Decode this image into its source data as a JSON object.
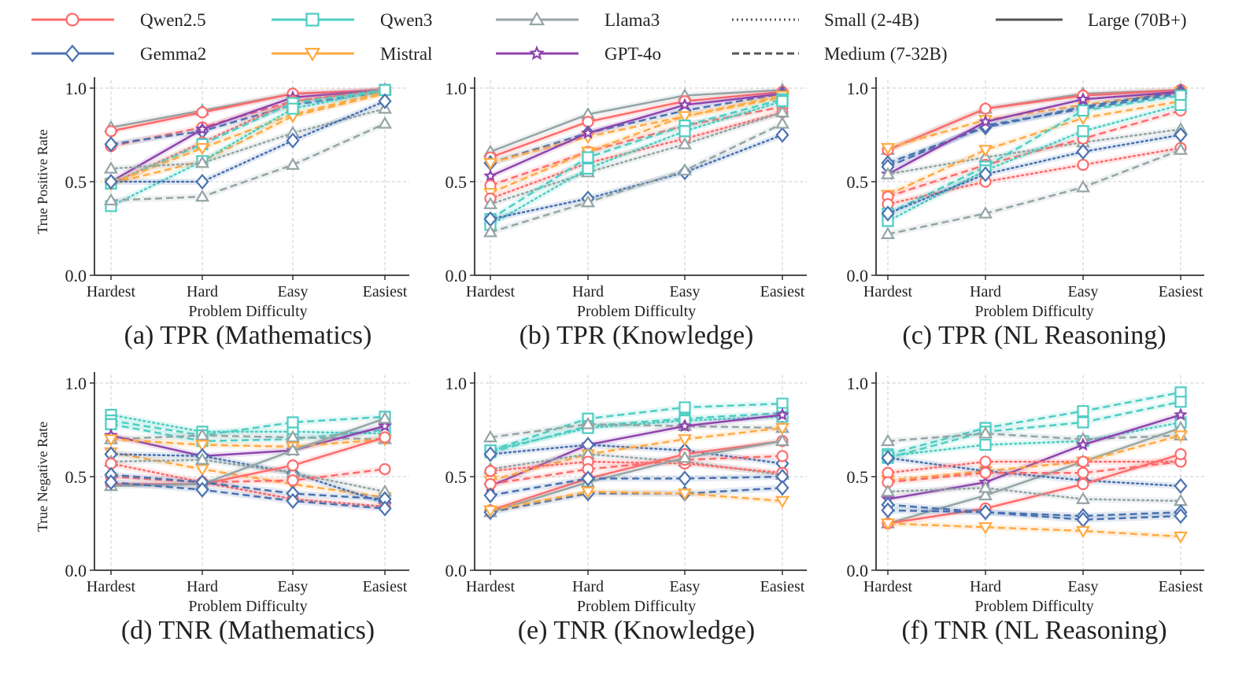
{
  "legend": {
    "families": [
      {
        "name": "Qwen2.5",
        "color": "#ff6b6b",
        "marker": "circle"
      },
      {
        "name": "Gemma2",
        "color": "#4a72b0",
        "marker": "diamond"
      },
      {
        "name": "Qwen3",
        "color": "#4ecdc4",
        "marker": "square"
      },
      {
        "name": "Mistral",
        "color": "#ffaa44",
        "marker": "triangle-down"
      },
      {
        "name": "Llama3",
        "color": "#95a5a6",
        "marker": "triangle-up"
      },
      {
        "name": "GPT-4o",
        "color": "#8e44ad",
        "marker": "star"
      }
    ],
    "sizes": [
      {
        "key": "small",
        "name": "Small (2-4B)",
        "style": "dotted"
      },
      {
        "key": "medium",
        "name": "Medium (7-32B)",
        "style": "dashed"
      },
      {
        "key": "large",
        "name": "Large (70B+)",
        "style": "solid"
      }
    ]
  },
  "chart_data": [
    {
      "type": "line",
      "title": "(a) TPR (Mathematics)",
      "xlabel": "Problem Difficulty",
      "ylabel": "True Positive Rate",
      "categories": [
        "Hardest",
        "Hard",
        "Easy",
        "Easiest"
      ],
      "ylim": [
        0,
        1
      ],
      "yticks": [
        "0.0",
        "0.5",
        "1.0"
      ],
      "grid": true,
      "series": [
        {
          "family": "Llama3",
          "size": "large",
          "values": [
            0.79,
            0.88,
            0.97,
            0.99
          ]
        },
        {
          "family": "Qwen2.5",
          "size": "large",
          "values": [
            0.77,
            0.87,
            0.97,
            0.99
          ]
        },
        {
          "family": "Qwen2.5",
          "size": "medium",
          "values": [
            0.69,
            0.79,
            0.93,
            0.99
          ]
        },
        {
          "family": "Gemma2",
          "size": "medium",
          "values": [
            0.7,
            0.77,
            0.91,
            0.98
          ]
        },
        {
          "family": "GPT-4o",
          "size": "large",
          "values": [
            0.5,
            0.78,
            0.95,
            0.99
          ]
        },
        {
          "family": "Qwen2.5",
          "size": "small",
          "values": [
            0.49,
            0.71,
            0.93,
            0.99
          ]
        },
        {
          "family": "Qwen3",
          "size": "medium",
          "values": [
            0.49,
            0.7,
            0.92,
            0.99
          ]
        },
        {
          "family": "Mistral",
          "size": "medium",
          "values": [
            0.49,
            0.68,
            0.86,
            0.98
          ]
        },
        {
          "family": "Mistral",
          "size": "medium",
          "values": [
            0.49,
            0.61,
            0.85,
            0.97
          ]
        },
        {
          "family": "Qwen3",
          "size": "small",
          "values": [
            0.37,
            0.61,
            0.89,
            0.99
          ]
        },
        {
          "family": "Llama3",
          "size": "small",
          "values": [
            0.57,
            0.6,
            0.76,
            0.89
          ]
        },
        {
          "family": "Gemma2",
          "size": "small",
          "values": [
            0.5,
            0.5,
            0.72,
            0.93
          ]
        },
        {
          "family": "Llama3",
          "size": "medium",
          "values": [
            0.4,
            0.42,
            0.59,
            0.81
          ]
        }
      ]
    },
    {
      "type": "line",
      "title": "(b) TPR (Knowledge)",
      "xlabel": "Problem Difficulty",
      "ylabel": "",
      "categories": [
        "Hardest",
        "Hard",
        "Easy",
        "Easiest"
      ],
      "ylim": [
        0,
        1
      ],
      "yticks": [
        "0.0",
        "0.5",
        "1.0"
      ],
      "grid": true,
      "series": [
        {
          "family": "Llama3",
          "size": "large",
          "values": [
            0.66,
            0.86,
            0.96,
            0.99
          ]
        },
        {
          "family": "Qwen2.5",
          "size": "large",
          "values": [
            0.63,
            0.82,
            0.93,
            0.98
          ]
        },
        {
          "family": "Gemma2",
          "size": "medium",
          "values": [
            0.6,
            0.76,
            0.88,
            0.97
          ]
        },
        {
          "family": "Mistral",
          "size": "medium",
          "values": [
            0.6,
            0.74,
            0.85,
            0.95
          ]
        },
        {
          "family": "GPT-4o",
          "size": "large",
          "values": [
            0.53,
            0.76,
            0.91,
            0.97
          ]
        },
        {
          "family": "Qwen2.5",
          "size": "medium",
          "values": [
            0.48,
            0.66,
            0.8,
            0.9
          ]
        },
        {
          "family": "Mistral",
          "size": "medium",
          "values": [
            0.44,
            0.66,
            0.85,
            0.96
          ]
        },
        {
          "family": "Qwen2.5",
          "size": "small",
          "values": [
            0.41,
            0.6,
            0.73,
            0.87
          ]
        },
        {
          "family": "Llama3",
          "size": "small",
          "values": [
            0.38,
            0.55,
            0.7,
            0.87
          ]
        },
        {
          "family": "Qwen3",
          "size": "medium",
          "values": [
            0.3,
            0.63,
            0.8,
            0.94
          ]
        },
        {
          "family": "Qwen3",
          "size": "small",
          "values": [
            0.27,
            0.57,
            0.77,
            0.93
          ]
        },
        {
          "family": "Gemma2",
          "size": "small",
          "values": [
            0.3,
            0.41,
            0.55,
            0.75
          ]
        },
        {
          "family": "Llama3",
          "size": "medium",
          "values": [
            0.23,
            0.39,
            0.56,
            0.81
          ]
        }
      ]
    },
    {
      "type": "line",
      "title": "(c) TPR (NL Reasoning)",
      "xlabel": "Problem Difficulty",
      "ylabel": "",
      "categories": [
        "Hardest",
        "Hard",
        "Easy",
        "Easiest"
      ],
      "ylim": [
        0,
        1
      ],
      "yticks": [
        "0.0",
        "0.5",
        "1.0"
      ],
      "grid": true,
      "series": [
        {
          "family": "Llama3",
          "size": "large",
          "values": [
            0.67,
            0.89,
            0.97,
            0.99
          ]
        },
        {
          "family": "Qwen2.5",
          "size": "large",
          "values": [
            0.67,
            0.89,
            0.96,
            0.99
          ]
        },
        {
          "family": "Mistral",
          "size": "medium",
          "values": [
            0.68,
            0.83,
            0.91,
            0.98
          ]
        },
        {
          "family": "Gemma2",
          "size": "medium",
          "values": [
            0.6,
            0.79,
            0.9,
            0.98
          ]
        },
        {
          "family": "Gemma2",
          "size": "medium",
          "values": [
            0.58,
            0.8,
            0.89,
            0.97
          ]
        },
        {
          "family": "GPT-4o",
          "size": "large",
          "values": [
            0.54,
            0.82,
            0.94,
            0.98
          ]
        },
        {
          "family": "Llama3",
          "size": "small",
          "values": [
            0.54,
            0.63,
            0.71,
            0.78
          ]
        },
        {
          "family": "Mistral",
          "size": "medium",
          "values": [
            0.43,
            0.67,
            0.84,
            0.93
          ]
        },
        {
          "family": "Qwen2.5",
          "size": "medium",
          "values": [
            0.42,
            0.59,
            0.73,
            0.88
          ]
        },
        {
          "family": "Qwen2.5",
          "size": "small",
          "values": [
            0.38,
            0.5,
            0.59,
            0.68
          ]
        },
        {
          "family": "Qwen3",
          "size": "medium",
          "values": [
            0.33,
            0.58,
            0.88,
            0.96
          ]
        },
        {
          "family": "Qwen3",
          "size": "small",
          "values": [
            0.29,
            0.56,
            0.77,
            0.91
          ]
        },
        {
          "family": "Gemma2",
          "size": "small",
          "values": [
            0.33,
            0.54,
            0.66,
            0.75
          ]
        },
        {
          "family": "Llama3",
          "size": "medium",
          "values": [
            0.22,
            0.33,
            0.47,
            0.67
          ]
        }
      ]
    },
    {
      "type": "line",
      "title": "(d) TNR (Mathematics)",
      "xlabel": "Problem Difficulty",
      "ylabel": "True Negative Rate",
      "categories": [
        "Hardest",
        "Hard",
        "Easy",
        "Easiest"
      ],
      "ylim": [
        0,
        1
      ],
      "yticks": [
        "0.0",
        "0.5",
        "1.0"
      ],
      "grid": true,
      "series": [
        {
          "family": "Qwen3",
          "size": "small",
          "values": [
            0.83,
            0.74,
            0.74,
            0.73
          ]
        },
        {
          "family": "Qwen3",
          "size": "medium",
          "values": [
            0.8,
            0.72,
            0.79,
            0.82
          ]
        },
        {
          "family": "Qwen3",
          "size": "medium",
          "values": [
            0.78,
            0.69,
            0.7,
            0.75
          ]
        },
        {
          "family": "Llama3",
          "size": "medium",
          "values": [
            0.7,
            0.72,
            0.71,
            0.7
          ]
        },
        {
          "family": "GPT-4o",
          "size": "large",
          "values": [
            0.72,
            0.61,
            0.64,
            0.77
          ]
        },
        {
          "family": "Mistral",
          "size": "medium",
          "values": [
            0.7,
            0.67,
            0.66,
            0.7
          ]
        },
        {
          "family": "Mistral",
          "size": "medium",
          "values": [
            0.63,
            0.54,
            0.46,
            0.39
          ]
        },
        {
          "family": "Gemma2",
          "size": "small",
          "values": [
            0.62,
            0.61,
            0.52,
            0.36
          ]
        },
        {
          "family": "Llama3",
          "size": "small",
          "values": [
            0.58,
            0.59,
            0.52,
            0.42
          ]
        },
        {
          "family": "Qwen2.5",
          "size": "small",
          "values": [
            0.57,
            0.47,
            0.38,
            0.34
          ]
        },
        {
          "family": "Qwen2.5",
          "size": "medium",
          "values": [
            0.5,
            0.47,
            0.48,
            0.54
          ]
        },
        {
          "family": "Qwen2.5",
          "size": "large",
          "values": [
            0.46,
            0.46,
            0.56,
            0.71
          ]
        },
        {
          "family": "Llama3",
          "size": "large",
          "values": [
            0.45,
            0.46,
            0.64,
            0.81
          ]
        },
        {
          "family": "Gemma2",
          "size": "medium",
          "values": [
            0.51,
            0.47,
            0.41,
            0.38
          ]
        },
        {
          "family": "Gemma2",
          "size": "medium",
          "values": [
            0.47,
            0.43,
            0.37,
            0.33
          ]
        }
      ]
    },
    {
      "type": "line",
      "title": "(e) TNR (Knowledge)",
      "xlabel": "Problem Difficulty",
      "ylabel": "",
      "categories": [
        "Hardest",
        "Hard",
        "Easy",
        "Easiest"
      ],
      "ylim": [
        0,
        1
      ],
      "yticks": [
        "0.0",
        "0.5",
        "1.0"
      ],
      "grid": true,
      "series": [
        {
          "family": "Qwen3",
          "size": "medium",
          "values": [
            0.64,
            0.81,
            0.87,
            0.89
          ]
        },
        {
          "family": "Qwen3",
          "size": "medium",
          "values": [
            0.63,
            0.77,
            0.81,
            0.84
          ]
        },
        {
          "family": "Qwen3",
          "size": "small",
          "values": [
            0.64,
            0.76,
            0.8,
            0.82
          ]
        },
        {
          "family": "Llama3",
          "size": "medium",
          "values": [
            0.71,
            0.78,
            0.77,
            0.76
          ]
        },
        {
          "family": "GPT-4o",
          "size": "large",
          "values": [
            0.45,
            0.67,
            0.77,
            0.83
          ]
        },
        {
          "family": "Gemma2",
          "size": "small",
          "values": [
            0.62,
            0.67,
            0.64,
            0.57
          ]
        },
        {
          "family": "Mistral",
          "size": "medium",
          "values": [
            0.48,
            0.62,
            0.7,
            0.76
          ]
        },
        {
          "family": "Llama3",
          "size": "small",
          "values": [
            0.54,
            0.62,
            0.58,
            0.51
          ]
        },
        {
          "family": "Qwen2.5",
          "size": "small",
          "values": [
            0.53,
            0.58,
            0.57,
            0.52
          ]
        },
        {
          "family": "Qwen2.5",
          "size": "medium",
          "values": [
            0.46,
            0.54,
            0.59,
            0.61
          ]
        },
        {
          "family": "Qwen2.5",
          "size": "large",
          "values": [
            0.32,
            0.49,
            0.62,
            0.69
          ]
        },
        {
          "family": "Llama3",
          "size": "large",
          "values": [
            0.31,
            0.47,
            0.6,
            0.69
          ]
        },
        {
          "family": "Gemma2",
          "size": "medium",
          "values": [
            0.4,
            0.49,
            0.49,
            0.5
          ]
        },
        {
          "family": "Gemma2",
          "size": "medium",
          "values": [
            0.31,
            0.41,
            0.41,
            0.44
          ]
        },
        {
          "family": "Mistral",
          "size": "medium",
          "values": [
            0.32,
            0.42,
            0.41,
            0.37
          ]
        }
      ]
    },
    {
      "type": "line",
      "title": "(f) TNR (NL Reasoning)",
      "xlabel": "Problem Difficulty",
      "ylabel": "",
      "categories": [
        "Hardest",
        "Hard",
        "Easy",
        "Easiest"
      ],
      "ylim": [
        0,
        1
      ],
      "yticks": [
        "0.0",
        "0.5",
        "1.0"
      ],
      "grid": true,
      "series": [
        {
          "family": "Qwen3",
          "size": "medium",
          "values": [
            0.62,
            0.76,
            0.85,
            0.95
          ]
        },
        {
          "family": "Qwen3",
          "size": "medium",
          "values": [
            0.6,
            0.74,
            0.79,
            0.9
          ]
        },
        {
          "family": "Qwen3",
          "size": "small",
          "values": [
            0.61,
            0.67,
            0.69,
            0.79
          ]
        },
        {
          "family": "Llama3",
          "size": "medium",
          "values": [
            0.69,
            0.73,
            0.7,
            0.72
          ]
        },
        {
          "family": "GPT-4o",
          "size": "large",
          "values": [
            0.38,
            0.47,
            0.67,
            0.83
          ]
        },
        {
          "family": "Llama3",
          "size": "large",
          "values": [
            0.25,
            0.4,
            0.58,
            0.76
          ]
        },
        {
          "family": "Mistral",
          "size": "medium",
          "values": [
            0.48,
            0.53,
            0.58,
            0.72
          ]
        },
        {
          "family": "Gemma2",
          "size": "small",
          "values": [
            0.6,
            0.53,
            0.48,
            0.45
          ]
        },
        {
          "family": "Qwen2.5",
          "size": "small",
          "values": [
            0.52,
            0.58,
            0.58,
            0.58
          ]
        },
        {
          "family": "Qwen2.5",
          "size": "medium",
          "values": [
            0.47,
            0.52,
            0.52,
            0.58
          ]
        },
        {
          "family": "Qwen2.5",
          "size": "large",
          "values": [
            0.25,
            0.33,
            0.46,
            0.62
          ]
        },
        {
          "family": "Llama3",
          "size": "small",
          "values": [
            0.42,
            0.44,
            0.38,
            0.37
          ]
        },
        {
          "family": "Gemma2",
          "size": "medium",
          "values": [
            0.35,
            0.31,
            0.29,
            0.31
          ]
        },
        {
          "family": "Gemma2",
          "size": "medium",
          "values": [
            0.32,
            0.31,
            0.27,
            0.29
          ]
        },
        {
          "family": "Mistral",
          "size": "medium",
          "values": [
            0.25,
            0.23,
            0.21,
            0.18
          ]
        }
      ]
    }
  ]
}
